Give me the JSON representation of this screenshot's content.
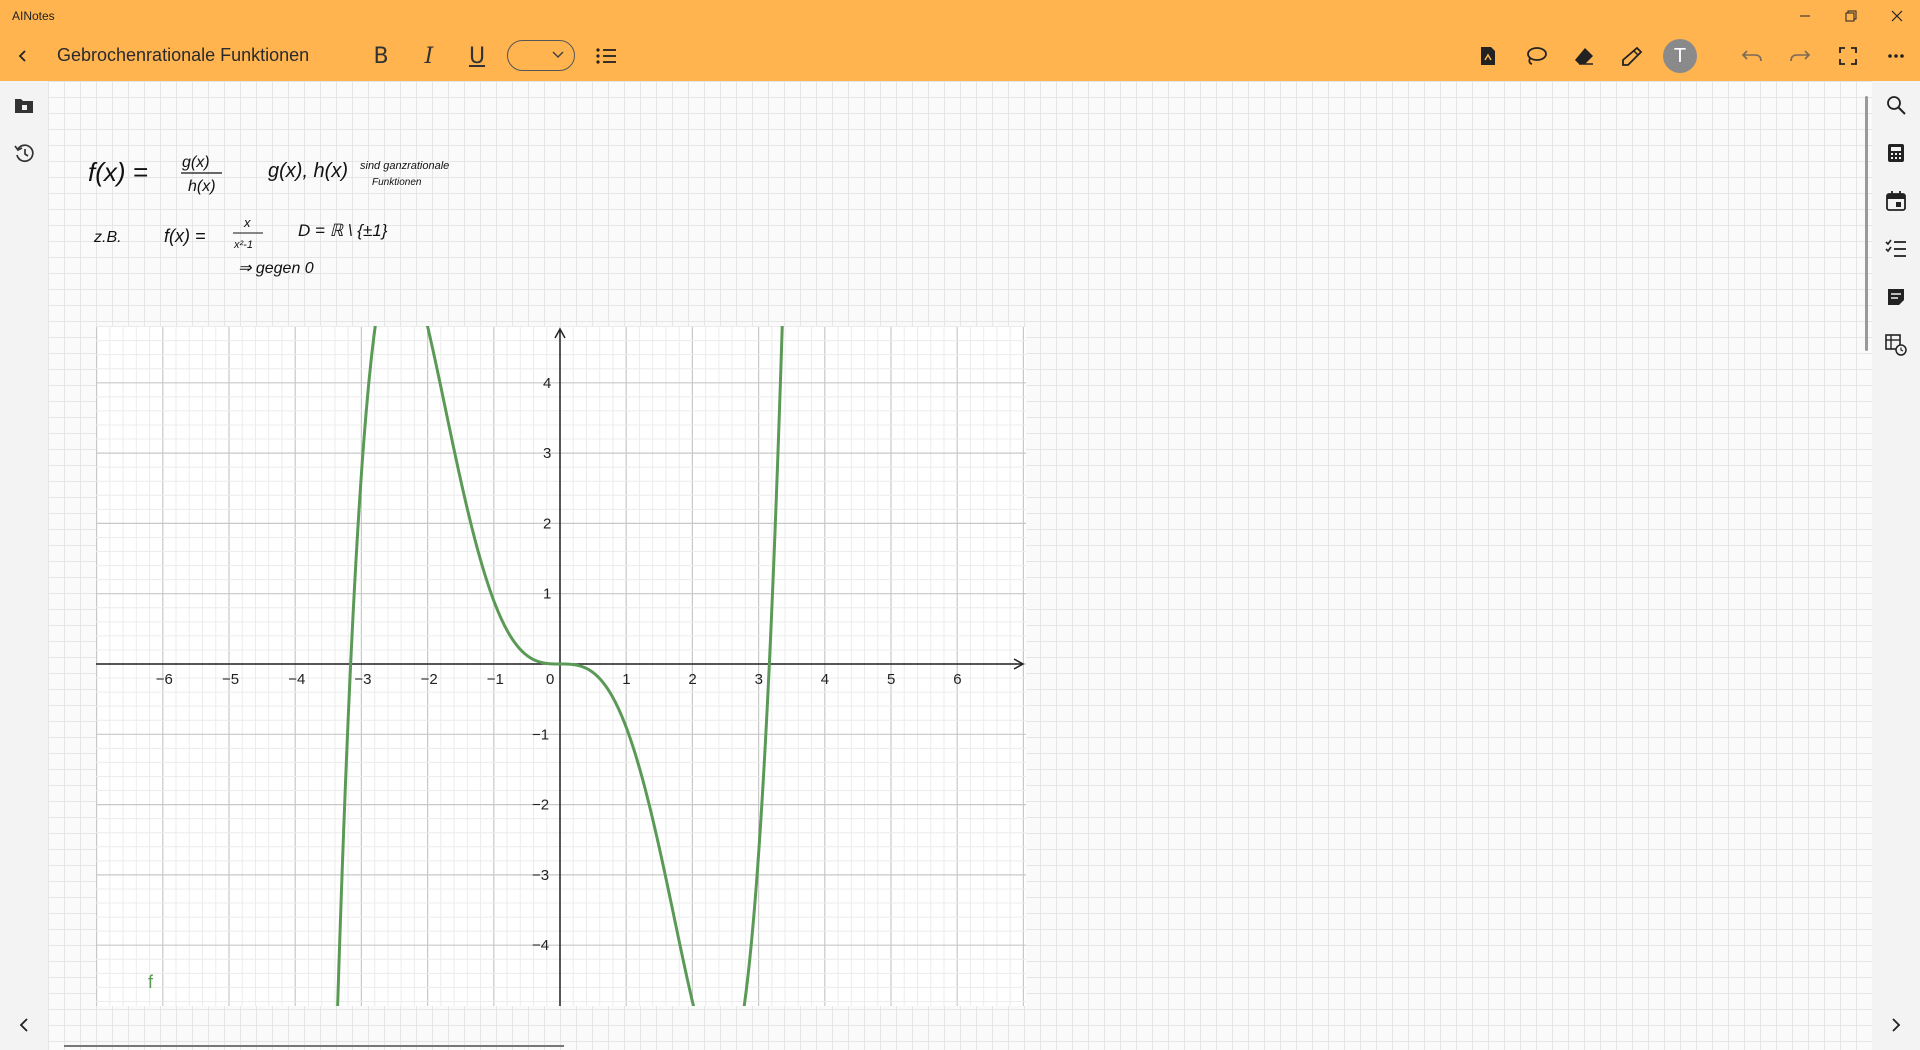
{
  "app": {
    "title": "AINotes"
  },
  "toolbar": {
    "doc_title": "Gebrochenrationale Funktionen",
    "bold": "B",
    "italic": "I",
    "underline": "U",
    "avatar_letter": "T"
  },
  "notes": {
    "line1_formula": "f(x) = g(x) / h(x)",
    "line1_comment": "g(x), h(x) sind ganzrationale Funktionen",
    "line2_label": "z.B.",
    "line2_formula": "f(x) = x / (x² - 1)",
    "line2_domain": "D = ℝ \\ {±1}",
    "line3": "⇒ gegen 0"
  },
  "colors": {
    "accent": "#ffb450",
    "curve": "#5b9a56"
  },
  "icons": {
    "left_rail": [
      "notebook-icon",
      "history-icon",
      "collapse-left-icon"
    ],
    "right_rail": [
      "search-icon",
      "calculator-icon",
      "calendar-icon",
      "checklist-icon",
      "sticky-note-icon",
      "table-clock-icon",
      "collapse-right-icon"
    ],
    "toolbar": [
      "back-icon",
      "list-icon",
      "pdf-icon",
      "lasso-icon",
      "eraser-icon",
      "pen-icon",
      "undo-icon",
      "redo-icon",
      "fullscreen-icon",
      "more-icon"
    ]
  },
  "chart_data": {
    "type": "line",
    "series": [
      {
        "name": "f",
        "function": "0.1*x^5 - x^3"
      }
    ],
    "xlim": [
      -7,
      7
    ],
    "ylim": [
      -4.8,
      4.8
    ],
    "x_ticks": [
      "−6",
      "−5",
      "−4",
      "−3",
      "−2",
      "−1",
      "0",
      "1",
      "2",
      "3",
      "4",
      "5",
      "6"
    ],
    "y_ticks": [
      "4",
      "3",
      "2",
      "1",
      "−1",
      "−2",
      "−3",
      "−4"
    ],
    "grid": true
  }
}
